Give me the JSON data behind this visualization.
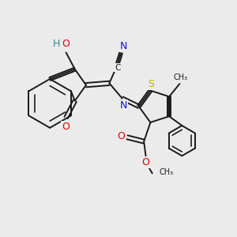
{
  "bg_color": "#ebebeb",
  "bond_color": "#1a1a1a",
  "bond_lw": 1.4,
  "atom_colors": {
    "O": "#e00000",
    "N": "#1010e0",
    "S": "#b8b800",
    "H": "#3a8888",
    "C": "#1a1a1a"
  },
  "font_size": 8.5
}
